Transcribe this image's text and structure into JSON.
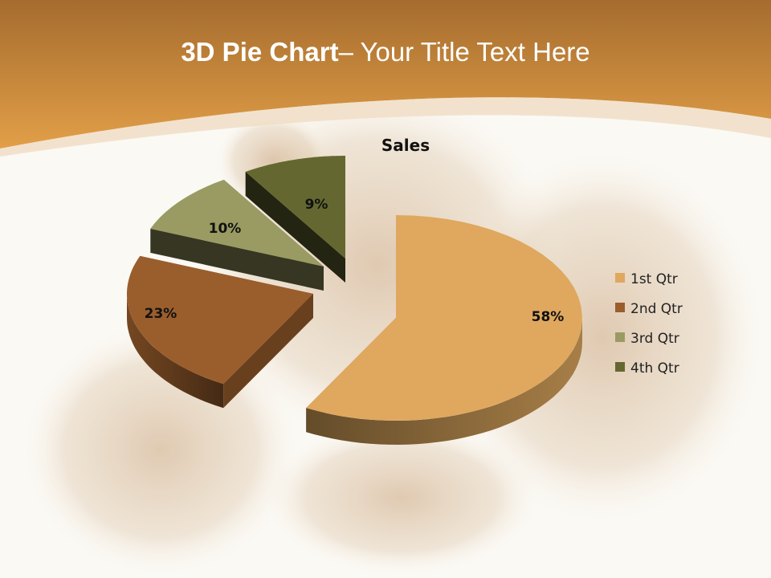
{
  "slide": {
    "title_bold": "3D Pie Chart",
    "title_rest": "– Your Title Text Here",
    "header_color": "#d89a48",
    "background_color": "#fbf9f4"
  },
  "chart_data": {
    "type": "pie",
    "style": "3d-exploded",
    "title": "Sales",
    "categories": [
      "1st Qtr",
      "2nd Qtr",
      "3rd Qtr",
      "4th Qtr"
    ],
    "values": [
      58,
      23,
      10,
      9
    ],
    "data_labels": [
      "58%",
      "23%",
      "10%",
      "9%"
    ],
    "colors": [
      "#dfa85e",
      "#9a5e2c",
      "#999b62",
      "#646830"
    ],
    "legend_position": "right"
  }
}
